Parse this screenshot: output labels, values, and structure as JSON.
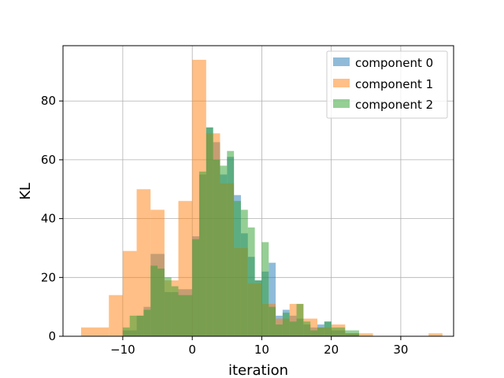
{
  "chart_data": {
    "type": "bar",
    "title": "",
    "xlabel": "iteration",
    "ylabel": "KL",
    "xlim": [
      -18.6,
      37.6
    ],
    "ylim": [
      0,
      98.8
    ],
    "grid": true,
    "xticks": [
      -10,
      0,
      10,
      20,
      30
    ],
    "yticks": [
      0,
      20,
      40,
      60,
      80
    ],
    "legend_position": "top-right",
    "series": [
      {
        "name": "component 0",
        "color": "#1f77b4",
        "alpha": 0.5,
        "bins": [
          [
            -10,
            -8,
            2
          ],
          [
            -8,
            -7,
            7
          ],
          [
            -7,
            -6,
            10
          ],
          [
            -6,
            -5,
            28
          ],
          [
            -5,
            -4,
            28
          ],
          [
            -4,
            -2,
            15
          ],
          [
            -2,
            0,
            16
          ],
          [
            0,
            1,
            34
          ],
          [
            1,
            2,
            55
          ],
          [
            2,
            3,
            71
          ],
          [
            3,
            4,
            66
          ],
          [
            4,
            5,
            55
          ],
          [
            5,
            6,
            61
          ],
          [
            6,
            7,
            48
          ],
          [
            7,
            8,
            35
          ],
          [
            8,
            9,
            27
          ],
          [
            9,
            10,
            19
          ],
          [
            10,
            11,
            22
          ],
          [
            11,
            12,
            25
          ],
          [
            12,
            13,
            7
          ],
          [
            13,
            14,
            9
          ],
          [
            14,
            15,
            7
          ],
          [
            15,
            16,
            6
          ],
          [
            16,
            17,
            4
          ],
          [
            17,
            18,
            3
          ],
          [
            18,
            19,
            4
          ],
          [
            19,
            20,
            5
          ],
          [
            20,
            22,
            2
          ],
          [
            22,
            24,
            1
          ]
        ]
      },
      {
        "name": "component 1",
        "color": "#ff7f0e",
        "alpha": 0.5,
        "bins": [
          [
            -16,
            -12,
            3
          ],
          [
            -12,
            -10,
            14
          ],
          [
            -10,
            -8,
            29
          ],
          [
            -8,
            -6,
            50
          ],
          [
            -6,
            -4,
            43
          ],
          [
            -4,
            -2,
            19
          ],
          [
            -2,
            0,
            46
          ],
          [
            0,
            2,
            94
          ],
          [
            2,
            4,
            69
          ],
          [
            4,
            6,
            52
          ],
          [
            6,
            8,
            30
          ],
          [
            8,
            10,
            18
          ],
          [
            10,
            12,
            11
          ],
          [
            12,
            14,
            6
          ],
          [
            14,
            16,
            11
          ],
          [
            16,
            18,
            6
          ],
          [
            18,
            20,
            3
          ],
          [
            20,
            22,
            4
          ],
          [
            22,
            24,
            1
          ],
          [
            24,
            26,
            1
          ],
          [
            34,
            36,
            1
          ]
        ]
      },
      {
        "name": "component 2",
        "color": "#2ca02c",
        "alpha": 0.5,
        "bins": [
          [
            -10,
            -9,
            3
          ],
          [
            -9,
            -8,
            7
          ],
          [
            -8,
            -7,
            7
          ],
          [
            -7,
            -6,
            9
          ],
          [
            -6,
            -5,
            24
          ],
          [
            -5,
            -4,
            23
          ],
          [
            -4,
            -3,
            20
          ],
          [
            -3,
            -2,
            17
          ],
          [
            -2,
            0,
            14
          ],
          [
            0,
            1,
            33
          ],
          [
            1,
            2,
            56
          ],
          [
            2,
            3,
            71
          ],
          [
            3,
            4,
            60
          ],
          [
            4,
            5,
            58
          ],
          [
            5,
            6,
            63
          ],
          [
            6,
            7,
            46
          ],
          [
            7,
            8,
            43
          ],
          [
            8,
            9,
            37
          ],
          [
            9,
            10,
            19
          ],
          [
            10,
            11,
            32
          ],
          [
            11,
            12,
            10
          ],
          [
            12,
            13,
            4
          ],
          [
            13,
            14,
            8
          ],
          [
            14,
            15,
            5
          ],
          [
            15,
            16,
            11
          ],
          [
            16,
            17,
            5
          ],
          [
            17,
            18,
            2
          ],
          [
            18,
            19,
            3
          ],
          [
            19,
            20,
            5
          ],
          [
            20,
            22,
            3
          ],
          [
            22,
            24,
            2
          ]
        ]
      }
    ]
  }
}
